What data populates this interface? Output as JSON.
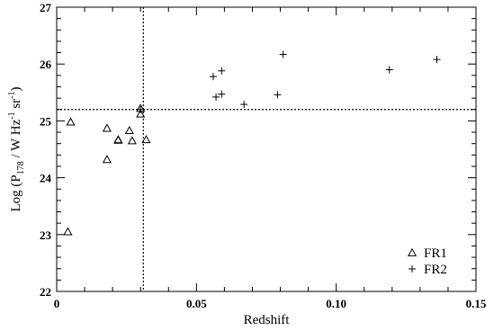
{
  "chart_data": {
    "type": "scatter",
    "xlabel": "Redshift",
    "ylabel_parts": {
      "prefix": "Log (P",
      "sub": "178",
      "mid": " / W Hz",
      "sup1": "-1",
      "mid2": " sr",
      "sup2": "-1",
      "suffix": ")"
    },
    "xlim": [
      0,
      0.15
    ],
    "ylim": [
      22,
      27
    ],
    "x_ticks": [
      {
        "value": 0,
        "label": "0"
      },
      {
        "value": 0.05,
        "label": "0.05"
      },
      {
        "value": 0.1,
        "label": "0.10"
      },
      {
        "value": 0.15,
        "label": "0.15"
      }
    ],
    "y_ticks": [
      {
        "value": 22,
        "label": "22"
      },
      {
        "value": 23,
        "label": "23"
      },
      {
        "value": 24,
        "label": "24"
      },
      {
        "value": 25,
        "label": "25"
      },
      {
        "value": 26,
        "label": "26"
      },
      {
        "value": 27,
        "label": "27"
      }
    ],
    "x_minor_step": 0.01,
    "y_minor_step": 0.2,
    "reference_lines": {
      "vertical_x": 0.031,
      "horizontal_y": 25.2
    },
    "legend_position": "bottom-right",
    "series": [
      {
        "name": "FR1",
        "marker": "triangle",
        "points": [
          {
            "x": 0.004,
            "y": 23.05
          },
          {
            "x": 0.005,
            "y": 24.98
          },
          {
            "x": 0.018,
            "y": 24.87
          },
          {
            "x": 0.018,
            "y": 24.32
          },
          {
            "x": 0.022,
            "y": 24.67
          },
          {
            "x": 0.022,
            "y": 24.66
          },
          {
            "x": 0.026,
            "y": 24.83
          },
          {
            "x": 0.027,
            "y": 24.65
          },
          {
            "x": 0.03,
            "y": 25.22
          },
          {
            "x": 0.03,
            "y": 25.12
          },
          {
            "x": 0.032,
            "y": 24.67
          }
        ]
      },
      {
        "name": "FR2",
        "marker": "plus",
        "points": [
          {
            "x": 0.03,
            "y": 25.2
          },
          {
            "x": 0.056,
            "y": 25.78
          },
          {
            "x": 0.059,
            "y": 25.88
          },
          {
            "x": 0.057,
            "y": 25.42
          },
          {
            "x": 0.059,
            "y": 25.47
          },
          {
            "x": 0.067,
            "y": 25.29
          },
          {
            "x": 0.079,
            "y": 25.46
          },
          {
            "x": 0.081,
            "y": 26.17
          },
          {
            "x": 0.119,
            "y": 25.9
          },
          {
            "x": 0.136,
            "y": 26.08
          }
        ]
      }
    ]
  }
}
